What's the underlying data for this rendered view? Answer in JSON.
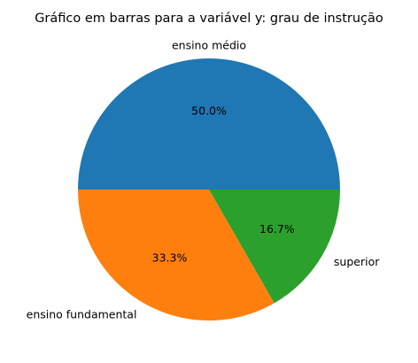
{
  "chart_data": {
    "type": "pie",
    "title": "Gráfico em barras para a variável y: grau de instrução",
    "slices": [
      {
        "label": "ensino médio",
        "value": 50.0,
        "pct_label": "50.0%",
        "color": "#1f77b4"
      },
      {
        "label": "ensino fundamental",
        "value": 33.3,
        "pct_label": "33.3%",
        "color": "#ff7f0e"
      },
      {
        "label": "superior",
        "value": 16.7,
        "pct_label": "16.7%",
        "color": "#2ca02c"
      }
    ],
    "start_angle_deg": 0,
    "direction": "counterclockwise",
    "legend": "none"
  }
}
